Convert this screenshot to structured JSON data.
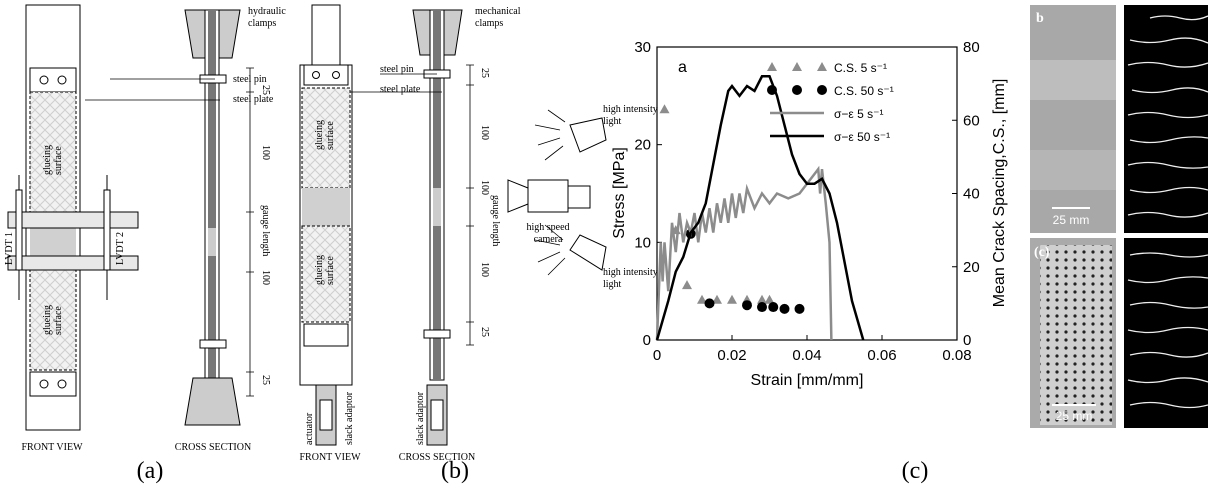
{
  "panel_a": {
    "hydraulic_clamps": [
      "hydraulic",
      "clamps"
    ],
    "steel_pin": "steel pin",
    "steel_plate": "steel plate",
    "glueing_surface_top": [
      "glueing",
      "surface"
    ],
    "glueing_surface_bottom": [
      "glueing",
      "surface"
    ],
    "lvdt_1": "LVDT 1",
    "lvdt_2": "LVDT 2",
    "dimensions": [
      25,
      100,
      100,
      25
    ],
    "gauge_length": "gauge length",
    "front_view": "FRONT VIEW",
    "cross_section": "CROSS SECTION",
    "caption": "(a)"
  },
  "panel_b": {
    "mechanical_clamps": [
      "mechanical",
      "clamps"
    ],
    "steel_pin": "steel pin",
    "steel_plate": "steel plate",
    "glueing_surface_top": [
      "glueing",
      "surface"
    ],
    "glueing_surface_bottom": [
      "glueing",
      "surface"
    ],
    "dimensions": [
      25,
      100,
      100,
      100,
      25
    ],
    "gauge_length": "gauge length",
    "high_intensity_light_top": [
      "high intensity",
      "light"
    ],
    "high_speed_camera": [
      "high speed",
      "camera"
    ],
    "high_intensity_light_bottom": [
      "high intensity",
      "light"
    ],
    "actuator": "actuator",
    "slack_adaptor_front": "slack adaptor",
    "slack_adaptor_cross": "slack adaptor",
    "front_view": "FRONT VIEW",
    "cross_section": "CROSS SECTION",
    "caption": "(b)"
  },
  "chart_data": {
    "type": "line",
    "annotation": "a",
    "xlabel": "Strain [mm/mm]",
    "ylabel": "Stress [MPa]",
    "y2label": "Mean Crack Spacing,C.S., [mm]",
    "xlim": [
      0,
      0.08
    ],
    "xticks": [
      0,
      0.02,
      0.04,
      0.06,
      0.08
    ],
    "ylim": [
      0,
      30
    ],
    "yticks": [
      0,
      10,
      20,
      30
    ],
    "y2lim": [
      0,
      80
    ],
    "y2ticks": [
      0,
      20,
      40,
      60,
      80
    ],
    "legend": "upper right",
    "grid": false,
    "series": [
      {
        "name": "C.S. 5 s⁻¹",
        "color": "#8c8c8c",
        "style": "triangle",
        "axis": "y2",
        "x": [
          0.002,
          0.005,
          0.008,
          0.012,
          0.016,
          0.02,
          0.024,
          0.028,
          0.03
        ],
        "y": [
          63,
          30,
          15,
          11,
          11,
          11,
          11,
          11,
          11
        ]
      },
      {
        "name": "C.S. 50 s⁻¹",
        "color": "#000000",
        "style": "circle",
        "axis": "y2",
        "x": [
          0.009,
          0.014,
          0.024,
          0.028,
          0.031,
          0.034,
          0.038
        ],
        "y": [
          29,
          10,
          9.5,
          9,
          9,
          8.5,
          8.5
        ]
      },
      {
        "name": "σ−ε 5 s⁻¹",
        "color": "#8c8c8c",
        "style": "line",
        "x": [
          0,
          0.001,
          0.0015,
          0.002,
          0.003,
          0.004,
          0.005,
          0.006,
          0.007,
          0.008,
          0.009,
          0.01,
          0.011,
          0.012,
          0.013,
          0.014,
          0.015,
          0.016,
          0.017,
          0.018,
          0.019,
          0.02,
          0.021,
          0.022,
          0.023,
          0.024,
          0.026,
          0.028,
          0.03,
          0.032,
          0.035,
          0.038,
          0.04,
          0.042,
          0.043,
          0.0435,
          0.044,
          0.045,
          0.046,
          0.0465
        ],
        "y": [
          0,
          10,
          6,
          10,
          5,
          12,
          9,
          13,
          10,
          12,
          11,
          13,
          10,
          13,
          11,
          13.5,
          11,
          14,
          12,
          14.5,
          12,
          15,
          12.5,
          15,
          13,
          15.5,
          13.5,
          15,
          14,
          15,
          14.5,
          15,
          16,
          17,
          17.5,
          15,
          17.5,
          14,
          10,
          0
        ]
      },
      {
        "name": "σ−ε 50 s⁻¹",
        "color": "#000000",
        "style": "line",
        "x": [
          0,
          0.003,
          0.005,
          0.007,
          0.009,
          0.011,
          0.013,
          0.015,
          0.017,
          0.019,
          0.02,
          0.022,
          0.024,
          0.026,
          0.028,
          0.03,
          0.032,
          0.034,
          0.036,
          0.038,
          0.04,
          0.042,
          0.044,
          0.046,
          0.048,
          0.05,
          0.052,
          0.055
        ],
        "y": [
          0,
          4,
          7,
          8.5,
          11,
          12,
          14,
          18,
          22,
          25.5,
          26,
          25,
          26,
          25.5,
          27,
          27,
          25,
          22,
          19,
          17,
          16,
          16,
          16.5,
          15,
          12,
          8,
          4,
          0
        ]
      }
    ]
  },
  "photos": {
    "top_label": "b",
    "top_scale": "25 mm",
    "bottom_label": "(c)",
    "bottom_scale": "25 mm",
    "caption": "(c)"
  }
}
